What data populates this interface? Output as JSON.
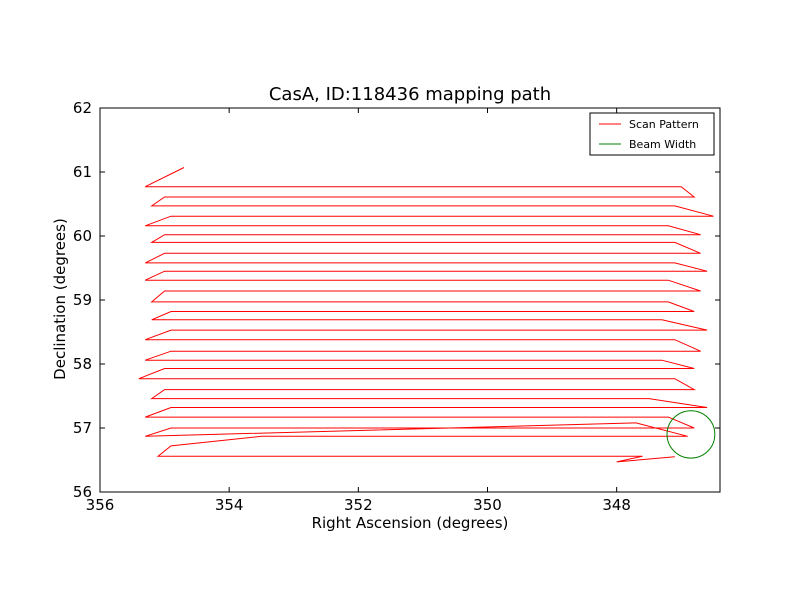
{
  "chart_data": {
    "type": "line",
    "title": "CasA, ID:118436 mapping path",
    "xlabel": "Right Ascension (degrees)",
    "ylabel": "Declination (degrees)",
    "xlim": [
      356.0,
      346.4
    ],
    "ylim": [
      56.0,
      62.0
    ],
    "x_reversed": true,
    "xticks": [
      356,
      354,
      352,
      350,
      348
    ],
    "xtick_labels": [
      "356",
      "354",
      "352",
      "350",
      "348"
    ],
    "yticks": [
      56,
      57,
      58,
      59,
      60,
      61,
      62
    ],
    "ytick_labels": [
      "56",
      "57",
      "58",
      "59",
      "60",
      "61",
      "62"
    ],
    "grid": false,
    "legend_position": "upper right",
    "colors": {
      "scan": "#ff0000",
      "beam": "#008000"
    },
    "series": [
      {
        "name": "Scan Pattern",
        "type": "line",
        "x": [
          347.1,
          348.0,
          347.6,
          355.1,
          354.9,
          353.5,
          346.9,
          347.7,
          355.3,
          354.9,
          346.8,
          347.2,
          355.3,
          354.9,
          346.6,
          347.5,
          355.2,
          355.0,
          346.8,
          347.1,
          355.4,
          355.0,
          346.8,
          347.3,
          355.3,
          354.9,
          346.7,
          347.1,
          355.3,
          354.9,
          346.6,
          347.3,
          355.2,
          354.9,
          346.8,
          347.2,
          355.2,
          355.0,
          346.7,
          347.2,
          355.3,
          355.0,
          346.6,
          347.1,
          355.3,
          355.0,
          346.7,
          347.1,
          355.2,
          355.0,
          346.7,
          347.2,
          355.3,
          354.9,
          346.5,
          347.1,
          355.2,
          355.0,
          346.8,
          347.0,
          355.3,
          354.7
        ],
        "y": [
          56.55,
          56.47,
          56.56,
          56.56,
          56.72,
          56.87,
          56.87,
          57.08,
          56.87,
          57.0,
          57.0,
          57.17,
          57.17,
          57.32,
          57.32,
          57.46,
          57.46,
          57.6,
          57.6,
          57.77,
          57.77,
          57.93,
          57.93,
          58.06,
          58.06,
          58.2,
          58.2,
          58.38,
          58.38,
          58.53,
          58.53,
          58.69,
          58.69,
          58.82,
          58.82,
          58.97,
          58.97,
          59.14,
          59.14,
          59.31,
          59.31,
          59.45,
          59.45,
          59.58,
          59.58,
          59.73,
          59.73,
          59.9,
          59.9,
          60.02,
          60.02,
          60.16,
          60.16,
          60.31,
          60.31,
          60.47,
          60.47,
          60.61,
          60.61,
          60.77,
          60.77,
          61.07
        ]
      },
      {
        "name": "Beam Width",
        "type": "circle",
        "center": [
          346.85,
          56.9
        ],
        "radius": 0.37
      }
    ],
    "legend": [
      "Scan Pattern",
      "Beam Width"
    ]
  }
}
